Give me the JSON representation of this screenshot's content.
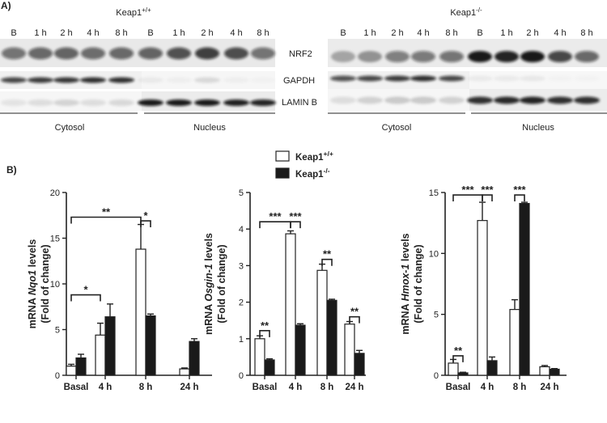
{
  "figure": {
    "panel_a_label": "A)",
    "panel_b_label": "B)"
  },
  "blot": {
    "left": {
      "genotype": "Keap1",
      "genotype_sup": "+/+",
      "cytosol_lanes": [
        "B",
        "1 h",
        "2 h",
        "4 h",
        "8 h"
      ],
      "nucleus_lanes": [
        "B",
        "1 h",
        "2 h",
        "4 h",
        "8 h"
      ],
      "cytosol_label": "Cytosol",
      "nucleus_label": "Nucleus"
    },
    "right": {
      "genotype": "Keap1",
      "genotype_sup": "-/-",
      "cytosol_lanes": [
        "B",
        "1 h",
        "2 h",
        "4 h",
        "8 h"
      ],
      "nucleus_lanes": [
        "B",
        "1 h",
        "2 h",
        "4 h",
        "8 h"
      ],
      "cytosol_label": "Cytosol",
      "nucleus_label": "Nucleus"
    },
    "proteins": [
      "NRF2",
      "GAPDH",
      "LAMIN B"
    ]
  },
  "legend": {
    "entries": [
      {
        "label": "Keap1",
        "sup": "+/+",
        "fill": "#ffffff"
      },
      {
        "label": "Keap1",
        "sup": "-/-",
        "fill": "#1a1a1a"
      }
    ]
  },
  "colors": {
    "wild_type_fill": "#ffffff",
    "knockout_fill": "#1a1a1a",
    "axis": "#222222"
  },
  "chart_data": [
    {
      "type": "bar",
      "ylabel_prefix": "mRNA ",
      "ylabel_gene": "Nqo1",
      "ylabel_suffix": " levels",
      "ylabel_line2": "(Fold of change)",
      "categories": [
        "Basal",
        "4 h",
        "8 h",
        "24 h"
      ],
      "ylim": [
        0,
        20
      ],
      "yticks": [
        0,
        5,
        10,
        15,
        20
      ],
      "series": [
        {
          "name": "Keap1+/+",
          "values": [
            1.0,
            4.4,
            13.8,
            0.7
          ],
          "errors": [
            0.2,
            1.3,
            2.7,
            0.1
          ]
        },
        {
          "name": "Keap1-/-",
          "values": [
            1.9,
            6.4,
            6.5,
            3.7
          ],
          "errors": [
            0.4,
            1.4,
            0.2,
            0.3
          ]
        }
      ],
      "significance": [
        {
          "label": "**",
          "from": [
            "Basal",
            0
          ],
          "to": [
            "8 h",
            0
          ],
          "level": 17.3
        },
        {
          "label": "*",
          "from": [
            "8 h",
            0
          ],
          "to": [
            "8 h",
            1
          ],
          "level": 16.9
        },
        {
          "label": "*",
          "from": [
            "Basal",
            0
          ],
          "to": [
            "4 h",
            0
          ],
          "level": 8.8
        }
      ]
    },
    {
      "type": "bar",
      "ylabel_prefix": "mRNA ",
      "ylabel_gene": "Osgin-1",
      "ylabel_suffix": " levels",
      "ylabel_line2": "(Fold of change)",
      "categories": [
        "Basal",
        "4 h",
        "8 h",
        "24 h"
      ],
      "ylim": [
        0,
        5
      ],
      "yticks": [
        0,
        1,
        2,
        3,
        4,
        5
      ],
      "series": [
        {
          "name": "Keap1+/+",
          "values": [
            1.0,
            3.87,
            2.87,
            1.4
          ],
          "errors": [
            0.08,
            0.08,
            0.17,
            0.07
          ]
        },
        {
          "name": "Keap1-/-",
          "values": [
            0.42,
            1.37,
            2.05,
            0.6
          ],
          "errors": [
            0.03,
            0.04,
            0.03,
            0.08
          ]
        }
      ],
      "significance": [
        {
          "label": "***",
          "from": [
            "Basal",
            0
          ],
          "to": [
            "4 h",
            0
          ],
          "level": 4.2
        },
        {
          "label": "***",
          "from": [
            "4 h",
            0
          ],
          "to": [
            "4 h",
            1
          ],
          "level": 4.2
        },
        {
          "label": "**",
          "from": [
            "Basal",
            0
          ],
          "to": [
            "Basal",
            1
          ],
          "level": 1.22
        },
        {
          "label": "**",
          "from": [
            "8 h",
            0
          ],
          "to": [
            "8 h",
            1
          ],
          "level": 3.17
        },
        {
          "label": "**",
          "from": [
            "24 h",
            0
          ],
          "to": [
            "24 h",
            1
          ],
          "level": 1.6
        }
      ]
    },
    {
      "type": "bar",
      "ylabel_prefix": "mRNA ",
      "ylabel_gene": "Hmox-1",
      "ylabel_suffix": " levels",
      "ylabel_line2": "(Fold of change)",
      "categories": [
        "Basal",
        "4 h",
        "8 h",
        "24 h"
      ],
      "ylim": [
        0,
        15
      ],
      "yticks": [
        0,
        5,
        10,
        15
      ],
      "series": [
        {
          "name": "Keap1+/+",
          "values": [
            1.0,
            12.7,
            5.4,
            0.7
          ],
          "errors": [
            0.3,
            1.5,
            0.8,
            0.1
          ]
        },
        {
          "name": "Keap1-/-",
          "values": [
            0.2,
            1.2,
            14.1,
            0.5
          ],
          "errors": [
            0.05,
            0.3,
            0.1,
            0.05
          ]
        }
      ],
      "significance": [
        {
          "label": "***",
          "from": [
            "Basal",
            0
          ],
          "to": [
            "4 h",
            0
          ],
          "level": 14.8
        },
        {
          "label": "***",
          "from": [
            "4 h",
            0
          ],
          "to": [
            "4 h",
            1
          ],
          "level": 14.8
        },
        {
          "label": "***",
          "from": [
            "8 h",
            0
          ],
          "to": [
            "8 h",
            1
          ],
          "level": 14.8
        },
        {
          "label": "**",
          "from": [
            "Basal",
            0
          ],
          "to": [
            "Basal",
            1
          ],
          "level": 1.6
        }
      ]
    }
  ]
}
